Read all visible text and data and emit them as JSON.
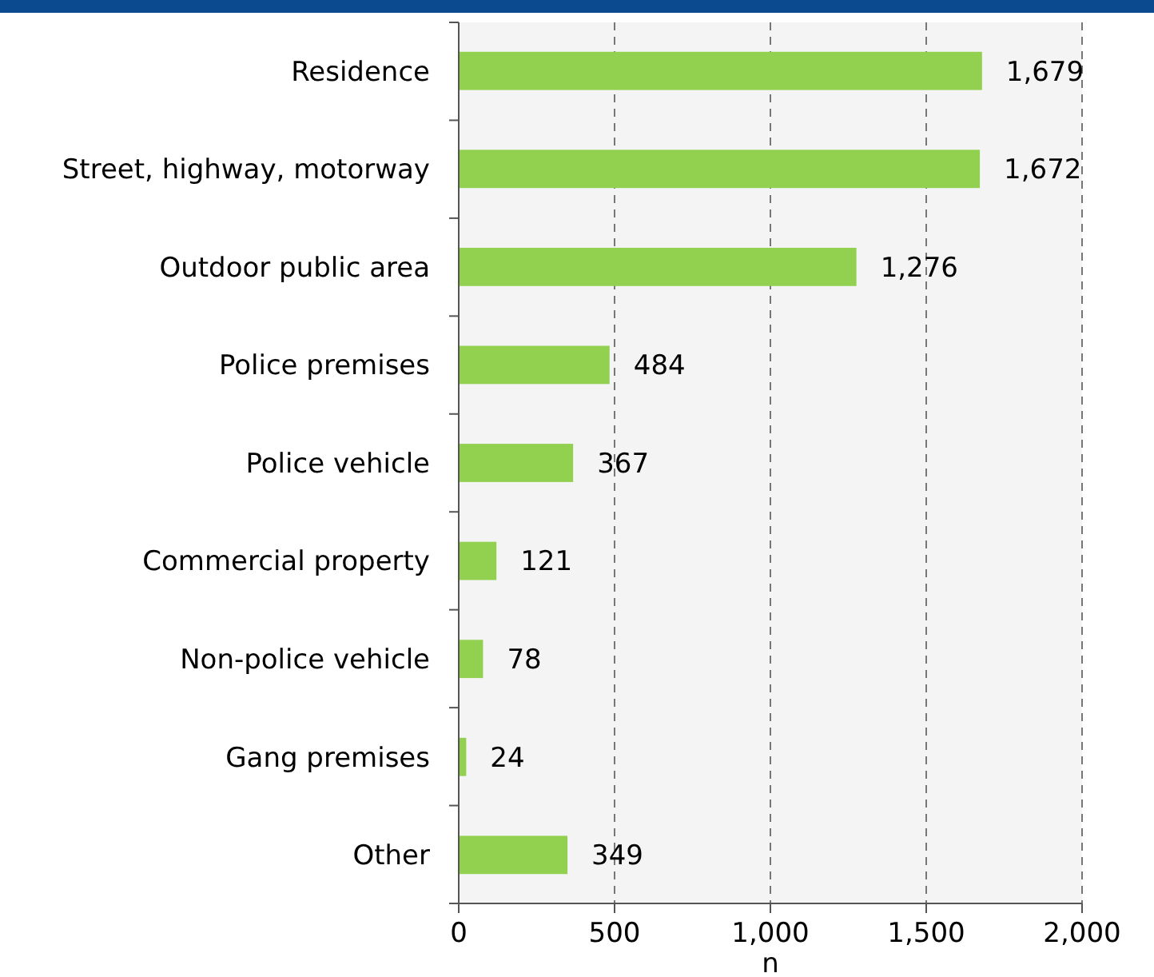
{
  "chart_data": {
    "type": "bar",
    "orientation": "horizontal",
    "xlabel": "n",
    "categories": [
      "Residence",
      "Street, highway, motorway",
      "Outdoor public area",
      "Police premises",
      "Police vehicle",
      "Commercial property",
      "Non-police vehicle",
      "Gang premises",
      "Other"
    ],
    "values": [
      1679,
      1672,
      1276,
      484,
      367,
      121,
      78,
      24,
      349
    ],
    "value_labels": [
      "1,679",
      "1,672",
      "1,276",
      "484",
      "367",
      "121",
      "78",
      "24",
      "349"
    ],
    "color": "#92d050",
    "xlim": [
      0,
      2000
    ],
    "xticks": [
      0,
      500,
      {
        "value": 1000,
        "label": "1,000"
      },
      {
        "value": 1500,
        "label": "1,500"
      },
      {
        "value": 2000,
        "label": "2,000"
      }
    ],
    "grid": "x"
  }
}
